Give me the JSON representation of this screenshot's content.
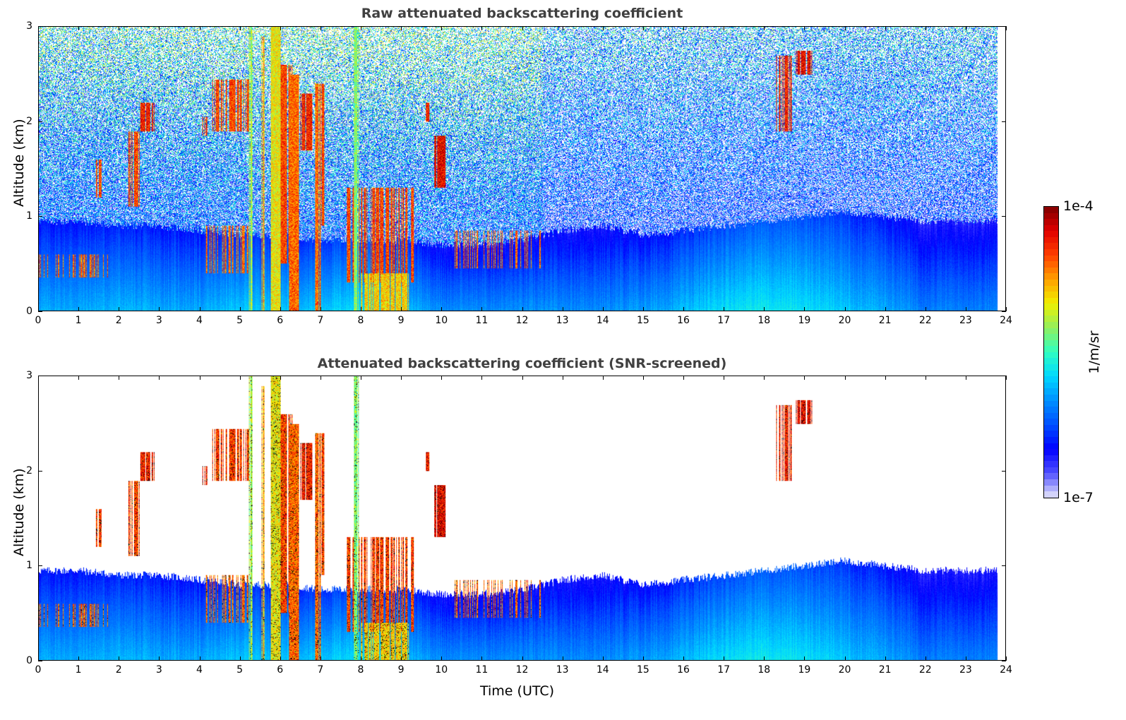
{
  "chart_data": [
    {
      "type": "heatmap",
      "title": "Raw attenuated backscattering coefficient",
      "xlabel": "",
      "ylabel": "Altitude (km)",
      "xlim": [
        0,
        24
      ],
      "ylim": [
        0,
        3
      ],
      "xticks": [
        "0",
        "1",
        "2",
        "3",
        "4",
        "5",
        "6",
        "7",
        "8",
        "9",
        "10",
        "11",
        "12",
        "13",
        "14",
        "15",
        "16",
        "17",
        "18",
        "19",
        "20",
        "21",
        "22",
        "23",
        "24"
      ],
      "yticks": [
        "0",
        "1",
        "2",
        "3"
      ],
      "screened": false
    },
    {
      "type": "heatmap",
      "title": "Attenuated backscattering coefficient (SNR-screened)",
      "xlabel": "Time (UTC)",
      "ylabel": "Altitude (km)",
      "xlim": [
        0,
        24
      ],
      "ylim": [
        0,
        3
      ],
      "xticks": [
        "0",
        "1",
        "2",
        "3",
        "4",
        "5",
        "6",
        "7",
        "8",
        "9",
        "10",
        "11",
        "12",
        "13",
        "14",
        "15",
        "16",
        "17",
        "18",
        "19",
        "20",
        "21",
        "22",
        "23",
        "24"
      ],
      "yticks": [
        "0",
        "1",
        "2",
        "3"
      ],
      "screened": true
    }
  ],
  "colorbar": {
    "label": "1/m/sr",
    "min_label": "1e-7",
    "max_label": "1e-4",
    "log_min": -7,
    "log_max": -4,
    "colors": [
      "#e6e6fa",
      "#5050ff",
      "#0000ff",
      "#0050ff",
      "#0090ff",
      "#00d8ff",
      "#30ffc0",
      "#90f060",
      "#f0f000",
      "#ffa000",
      "#ff4000",
      "#e00000",
      "#800000"
    ]
  },
  "data_end_hour": 23.8,
  "boundary_layer_top_km": [
    0.95,
    0.95,
    0.9,
    0.9,
    0.85,
    0.8,
    0.8,
    0.75,
    0.75,
    0.75,
    0.7,
    0.7,
    0.75,
    0.85,
    0.9,
    0.8,
    0.85,
    0.9,
    0.95,
    1.0,
    1.05,
    1.0,
    0.95,
    0.95,
    0.95
  ],
  "surface_log_beta": [
    -5.9,
    -5.9,
    -5.85,
    -5.9,
    -5.9,
    -5.8,
    -5.8,
    -5.8,
    -5.7,
    -5.8,
    -6.0,
    -6.0,
    -6.0,
    -6.0,
    -6.0,
    -5.95,
    -5.85,
    -5.7,
    -5.65,
    -5.7,
    -5.8,
    -5.9,
    -6.05,
    -6.05,
    -6.05
  ],
  "cloud_features": [
    [
      0.0,
      1.7,
      0.35,
      0.6,
      -4.3,
      0.25
    ],
    [
      1.4,
      1.6,
      1.2,
      1.6,
      -4.2,
      0.5
    ],
    [
      2.2,
      2.5,
      1.1,
      1.9,
      -4.2,
      0.6
    ],
    [
      2.5,
      2.9,
      1.9,
      2.2,
      -4.1,
      0.7
    ],
    [
      4.0,
      4.2,
      1.85,
      2.05,
      -4.1,
      0.7
    ],
    [
      4.3,
      5.3,
      1.9,
      2.45,
      -4.2,
      0.5
    ],
    [
      4.0,
      5.3,
      0.4,
      0.9,
      -4.3,
      0.35
    ],
    [
      5.2,
      5.3,
      0.0,
      3.0,
      -4.9,
      0.9
    ],
    [
      5.5,
      5.6,
      0.0,
      2.9,
      -4.5,
      0.8
    ],
    [
      5.75,
      6.0,
      0.0,
      3.0,
      -4.7,
      0.95
    ],
    [
      6.0,
      6.3,
      0.5,
      2.6,
      -4.2,
      0.6
    ],
    [
      6.2,
      6.45,
      0.0,
      2.5,
      -4.3,
      0.95
    ],
    [
      6.45,
      6.8,
      1.7,
      2.3,
      -4.1,
      0.8
    ],
    [
      6.85,
      7.0,
      0.0,
      2.4,
      -4.3,
      0.9
    ],
    [
      7.0,
      7.1,
      0.9,
      2.4,
      -4.2,
      0.5
    ],
    [
      7.6,
      9.3,
      0.3,
      1.3,
      -4.2,
      0.55
    ],
    [
      7.8,
      7.95,
      0.0,
      3.0,
      -5.0,
      0.9
    ],
    [
      8.0,
      9.2,
      0.0,
      0.4,
      -4.6,
      0.8
    ],
    [
      9.6,
      9.7,
      2.0,
      2.2,
      -4.1,
      0.6
    ],
    [
      9.8,
      10.1,
      1.3,
      1.85,
      -4.0,
      0.8
    ],
    [
      10.2,
      12.5,
      0.45,
      0.85,
      -4.3,
      0.3
    ],
    [
      18.3,
      18.7,
      1.9,
      2.7,
      -4.1,
      0.55
    ],
    [
      18.8,
      19.2,
      2.5,
      2.75,
      -4.0,
      0.8
    ]
  ]
}
